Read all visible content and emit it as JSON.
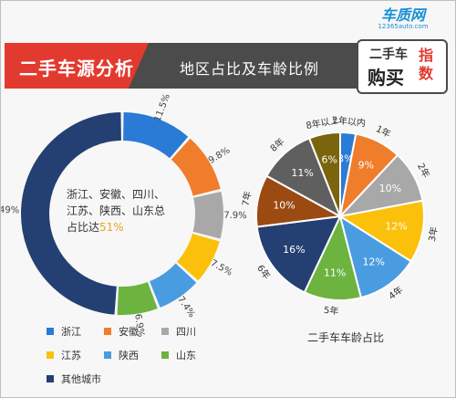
{
  "header": {
    "title": "二手车源分析",
    "subtitle": "地区占比及车龄比例"
  },
  "logo": {
    "site_name": "车质网",
    "site_url": "12365auto.com",
    "badge_line1": "二手车",
    "badge_line2": "购买",
    "badge_side": "指数"
  },
  "colors": {
    "blue": "#2a7bd5",
    "orange": "#ef7d2c",
    "gray": "#a8a8a8",
    "yellow": "#fbc10a",
    "light_blue": "#4a9ce0",
    "green": "#6db33f",
    "navy": "#243f72",
    "dark_gray": "#5f5f5f",
    "brown": "#9b4a12",
    "olive": "#7a640c"
  },
  "chart_data": [
    {
      "type": "pie",
      "style": "donut",
      "categories": [
        "浙江",
        "安徽",
        "四川",
        "江苏",
        "陕西",
        "山东",
        "其他城市"
      ],
      "values": [
        11.5,
        9.8,
        7.9,
        7.5,
        7.4,
        6.9,
        49
      ],
      "data_labels": [
        "11.5%",
        "9.8%",
        "7.9%",
        "7.5%",
        "7.4%",
        "6.9%",
        "49%"
      ],
      "colors": [
        "#2a7bd5",
        "#ef7d2c",
        "#a8a8a8",
        "#fbc10a",
        "#4a9ce0",
        "#6db33f",
        "#243f72"
      ],
      "center_text": "浙江、安徽、四川、江苏、陕西、山东总占比达",
      "center_highlight": "51%",
      "legend": [
        "浙江",
        "安徽",
        "四川",
        "江苏",
        "陕西",
        "山东",
        "其他城市"
      ],
      "legend_position": "bottom-left"
    },
    {
      "type": "pie",
      "title": "二手车车龄占比",
      "categories": [
        "1年以内",
        "1年",
        "2年",
        "3年",
        "4年",
        "5年",
        "6年",
        "7年",
        "8年",
        "8年以上"
      ],
      "values": [
        3,
        9,
        10,
        12,
        12,
        11,
        16,
        10,
        11,
        6
      ],
      "data_labels": [
        "3%",
        "9%",
        "10%",
        "12%",
        "12%",
        "11%",
        "16%",
        "10%",
        "11%",
        "6%"
      ],
      "colors": [
        "#2a7bd5",
        "#ef7d2c",
        "#a8a8a8",
        "#fbc10a",
        "#4a9ce0",
        "#6db33f",
        "#243f72",
        "#9b4a12",
        "#5f5f5f",
        "#7a640c"
      ]
    }
  ]
}
